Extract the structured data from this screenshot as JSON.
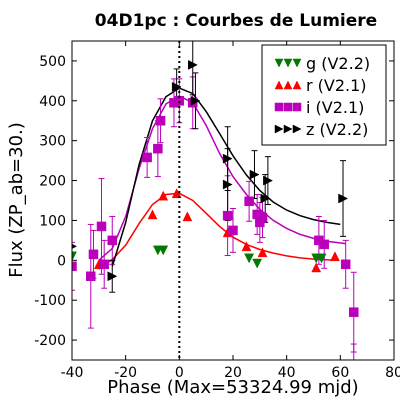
{
  "chart_data": {
    "type": "scatter",
    "title": "04D1pc : Courbes de Lumiere",
    "xlabel": "Phase (Max=53324.99 mjd)",
    "ylabel": "Flux (ZP_ab=30.)",
    "xlim": [
      -40,
      80
    ],
    "ylim": [
      -250,
      550
    ],
    "xticks": [
      -40,
      -20,
      0,
      20,
      40,
      60,
      80
    ],
    "yticks": [
      -200,
      -100,
      0,
      100,
      200,
      300,
      400,
      500
    ],
    "x_tick_labels": [
      "-40",
      "-20",
      "0",
      "20",
      "40",
      "60",
      "80"
    ],
    "y_tick_labels": [
      "-200",
      "-100",
      "0",
      "100",
      "200",
      "300",
      "400",
      "500"
    ],
    "max_phase_line": 0,
    "legend_position": "top-right",
    "series": [
      {
        "name": "g (V2.2)",
        "color": "#007a00",
        "marker": "triangle-down",
        "points": [
          {
            "x": -40,
            "y": 10,
            "err": 0
          },
          {
            "x": -8,
            "y": 25,
            "err": 0
          },
          {
            "x": -6,
            "y": 25,
            "err": 0
          },
          {
            "x": 26,
            "y": 5,
            "err": 0
          },
          {
            "x": 29,
            "y": -8,
            "err": 0
          },
          {
            "x": 51,
            "y": 5,
            "err": 0
          },
          {
            "x": 53,
            "y": 5,
            "err": 0
          }
        ]
      },
      {
        "name": "r (V2.1)",
        "color": "#ff0000",
        "marker": "triangle-up",
        "points": [
          {
            "x": -30,
            "y": -10,
            "err": 0
          },
          {
            "x": -10,
            "y": 115,
            "err": 0
          },
          {
            "x": -6,
            "y": 162,
            "err": 0
          },
          {
            "x": -1,
            "y": 168,
            "err": 0
          },
          {
            "x": 3,
            "y": 110,
            "err": 0
          },
          {
            "x": 18,
            "y": 70,
            "err": 0
          },
          {
            "x": 25,
            "y": 35,
            "err": 0
          },
          {
            "x": 31,
            "y": 20,
            "err": 0
          },
          {
            "x": 51,
            "y": -18,
            "err": 0
          },
          {
            "x": 58,
            "y": 10,
            "err": 0
          }
        ],
        "curve": [
          [
            -30,
            -22
          ],
          [
            -25,
            2
          ],
          [
            -20,
            38
          ],
          [
            -15,
            92
          ],
          [
            -10,
            140
          ],
          [
            -5,
            165
          ],
          [
            0,
            168
          ],
          [
            5,
            150
          ],
          [
            10,
            118
          ],
          [
            15,
            85
          ],
          [
            20,
            58
          ],
          [
            25,
            40
          ],
          [
            30,
            27
          ],
          [
            35,
            18
          ],
          [
            40,
            11
          ],
          [
            45,
            6
          ],
          [
            50,
            3
          ],
          [
            58,
            0
          ]
        ]
      },
      {
        "name": "i (V2.1)",
        "color": "#bb00bb",
        "marker": "square",
        "points": [
          {
            "x": -40,
            "y": -15,
            "err": 60
          },
          {
            "x": -33,
            "y": -40,
            "err": 130
          },
          {
            "x": -32,
            "y": 15,
            "err": 60
          },
          {
            "x": -29,
            "y": 85,
            "err": 120
          },
          {
            "x": -28,
            "y": -10,
            "err": 60
          },
          {
            "x": -25,
            "y": 50,
            "err": 60
          },
          {
            "x": -12,
            "y": 258,
            "err": 50
          },
          {
            "x": -8,
            "y": 280,
            "err": 70
          },
          {
            "x": -7,
            "y": 350,
            "err": 55
          },
          {
            "x": -2,
            "y": 395,
            "err": 60
          },
          {
            "x": 0,
            "y": 400,
            "err": 55
          },
          {
            "x": 5,
            "y": 395,
            "err": 65
          },
          {
            "x": 18,
            "y": 112,
            "err": 100
          },
          {
            "x": 20,
            "y": 75,
            "err": 55
          },
          {
            "x": 26,
            "y": 148,
            "err": 50
          },
          {
            "x": 29,
            "y": 115,
            "err": 50
          },
          {
            "x": 30,
            "y": 95,
            "err": 50
          },
          {
            "x": 31,
            "y": 107,
            "err": 50
          },
          {
            "x": 52,
            "y": 50,
            "err": 60
          },
          {
            "x": 54,
            "y": 40,
            "err": 60
          },
          {
            "x": 62,
            "y": -10,
            "err": 60
          },
          {
            "x": 65,
            "y": -130,
            "err": 100
          },
          {
            "x": 65,
            "y": -270,
            "err": 60
          }
        ],
        "curve": [
          [
            -30,
            0
          ],
          [
            -25,
            30
          ],
          [
            -20,
            110
          ],
          [
            -15,
            230
          ],
          [
            -10,
            330
          ],
          [
            -5,
            392
          ],
          [
            0,
            412
          ],
          [
            5,
            395
          ],
          [
            10,
            338
          ],
          [
            15,
            268
          ],
          [
            20,
            210
          ],
          [
            25,
            165
          ],
          [
            30,
            128
          ],
          [
            35,
            100
          ],
          [
            40,
            80
          ],
          [
            45,
            65
          ],
          [
            50,
            55
          ],
          [
            55,
            48
          ],
          [
            62,
            42
          ]
        ]
      },
      {
        "name": "z (V2.2)",
        "color": "#000000",
        "marker": "triangle-right",
        "points": [
          {
            "x": -40,
            "y": 35,
            "err": 0
          },
          {
            "x": -25,
            "y": -40,
            "err": 40
          },
          {
            "x": -1,
            "y": 435,
            "err": 45
          },
          {
            "x": 5,
            "y": 490,
            "err": 75
          },
          {
            "x": 6,
            "y": 400,
            "err": 70
          },
          {
            "x": 18,
            "y": 190,
            "err": 90
          },
          {
            "x": 18,
            "y": 255,
            "err": 80
          },
          {
            "x": 28,
            "y": 215,
            "err": 60
          },
          {
            "x": 32,
            "y": 155,
            "err": 60
          },
          {
            "x": 33,
            "y": 200,
            "err": 60
          },
          {
            "x": 61,
            "y": 155,
            "err": 95
          }
        ],
        "curve": [
          [
            -25,
            -15
          ],
          [
            -20,
            95
          ],
          [
            -15,
            240
          ],
          [
            -10,
            350
          ],
          [
            -5,
            410
          ],
          [
            0,
            432
          ],
          [
            5,
            418
          ],
          [
            10,
            373
          ],
          [
            15,
            318
          ],
          [
            20,
            262
          ],
          [
            25,
            214
          ],
          [
            30,
            175
          ],
          [
            35,
            146
          ],
          [
            40,
            126
          ],
          [
            45,
            112
          ],
          [
            50,
            102
          ],
          [
            55,
            95
          ],
          [
            60,
            90
          ]
        ]
      }
    ]
  }
}
